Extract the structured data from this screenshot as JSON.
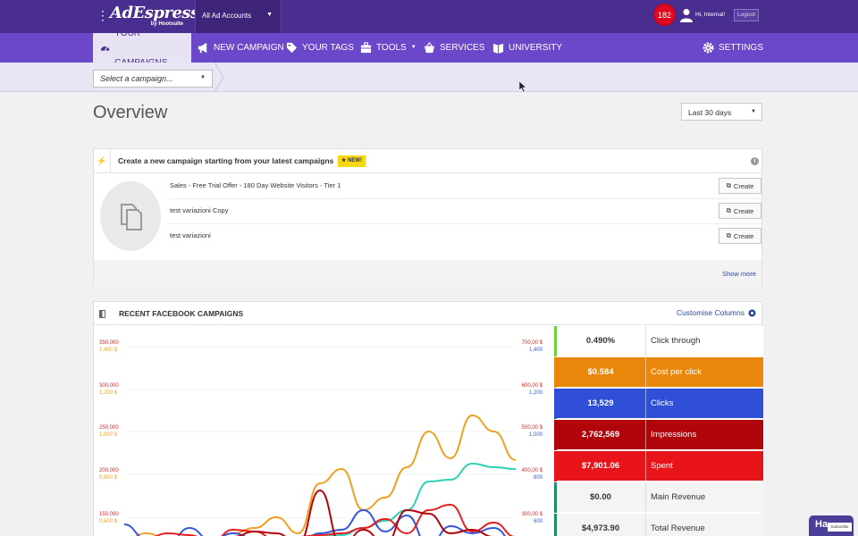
{
  "header": {
    "logo": "AdEspresso",
    "logo_sub": "by Hootsuite",
    "account_selector": "All Ad Accounts",
    "notifications_count": "182",
    "greeting": "Hi, Internal!",
    "logout_label": "Logout"
  },
  "nav": {
    "items": [
      {
        "label": "YOUR CAMPAIGNS",
        "icon": "dashboard-icon",
        "active": true
      },
      {
        "label": "NEW CAMPAIGN",
        "icon": "megaphone-icon"
      },
      {
        "label": "YOUR TAGS",
        "icon": "tag-icon"
      },
      {
        "label": "TOOLS",
        "icon": "toolbox-icon",
        "has_dropdown": true
      },
      {
        "label": "SERVICES",
        "icon": "basket-icon"
      },
      {
        "label": "UNIVERSITY",
        "icon": "book-icon"
      }
    ],
    "settings_label": "SETTINGS"
  },
  "subbar": {
    "campaign_select": "Select a campaign..."
  },
  "overview": {
    "title": "Overview",
    "date_range": "Last 30 days"
  },
  "create_panel": {
    "title": "Create a new campaign starting from your latest campaigns",
    "badge": "NEW!",
    "campaigns": [
      {
        "name": "Sales - Free Trial Offer - 180 Day Website Visitors - Tier 1",
        "button": "Create"
      },
      {
        "name": "test variazioni Copy",
        "button": "Create"
      },
      {
        "name": "test variazioni",
        "button": "Create"
      }
    ],
    "show_more": "Show more"
  },
  "recent_panel": {
    "title": "RECENT FACEBOOK CAMPAIGNS",
    "customise": "Customise Columns"
  },
  "metrics": [
    {
      "value": "0.490%",
      "label": "Click through",
      "bg": "#ffffff",
      "fg": "#333333",
      "bar": "#6fd23a"
    },
    {
      "value": "$0.584",
      "label": "Cost per click",
      "bg": "#e8870a",
      "fg": "#ffffff",
      "bar": "#e8870a"
    },
    {
      "value": "13,529",
      "label": "Clicks",
      "bg": "#2e4fd6",
      "fg": "#ffffff",
      "bar": "#2e4fd6"
    },
    {
      "value": "2,762,569",
      "label": "Impressions",
      "bg": "#b0060b",
      "fg": "#ffffff",
      "bar": "#b0060b"
    },
    {
      "value": "$7,901.06",
      "label": "Spent",
      "bg": "#e8141a",
      "fg": "#ffffff",
      "bar": "#e8141a"
    },
    {
      "value": "$0.00",
      "label": "Main Revenue",
      "bg": "#f4f4f4",
      "fg": "#333333",
      "bar": "#1f8a6a"
    },
    {
      "value": "$4,973.90",
      "label": "Total Revenue",
      "bg": "#f4f4f4",
      "fg": "#333333",
      "bar": "#1f8a6a"
    }
  ],
  "chart_data": {
    "type": "line",
    "left_axis_impressions": [
      "350,000",
      "300,000",
      "250,000",
      "200,000",
      "150,000"
    ],
    "left_axis_spent": [
      "1,400 $",
      "1,200 $",
      "1,000 $",
      "0,800 $",
      "0,600 $"
    ],
    "right_axis_cost": [
      "700,00 $",
      "600,00 $",
      "500,00 $",
      "400,00 $",
      "300,00 $"
    ],
    "right_axis_clicks": [
      "1,400",
      "1,200",
      "1,000",
      "800",
      "600"
    ],
    "series": [
      {
        "color": "#f0a020",
        "values": [
          240,
          232,
          238,
          236,
          240,
          232,
          226,
          214,
          232,
          176,
          160,
          206,
          192,
          158,
          118,
          148,
          100,
          118,
          150
        ]
      },
      {
        "color": "#2fd0b6",
        "values": [
          246,
          244,
          246,
          245,
          246,
          244,
          243,
          240,
          244,
          236,
          234,
          226,
          218,
          206,
          174,
          172,
          154,
          158,
          160
        ]
      },
      {
        "color": "#3355dd",
        "values": [
          222,
          238,
          244,
          226,
          240,
          232,
          238,
          236,
          244,
          232,
          228,
          206,
          230,
          212,
          246,
          224,
          232,
          226,
          244
        ]
      },
      {
        "color": "#e62020",
        "values": [
          246,
          238,
          232,
          234,
          242,
          228,
          230,
          240,
          236,
          234,
          232,
          226,
          216,
          232,
          206,
          200,
          230,
          220,
          236
        ]
      },
      {
        "color": "#b0060b",
        "values": [
          246,
          244,
          242,
          238,
          240,
          236,
          230,
          232,
          244,
          184,
          246,
          228,
          244,
          206,
          210,
          232,
          228,
          236,
          246
        ]
      }
    ]
  },
  "yt_badge": {
    "label": "Ha",
    "sub": "Subscribe"
  }
}
